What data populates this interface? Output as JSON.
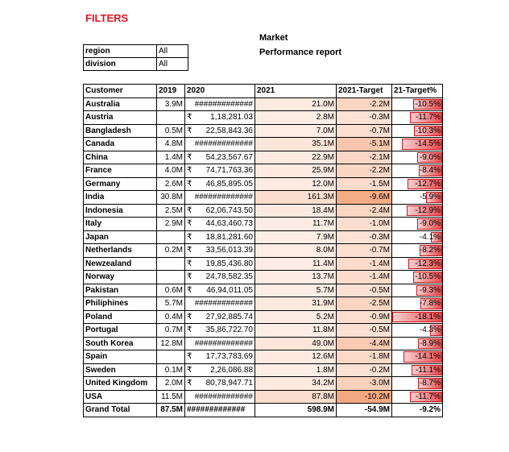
{
  "filters_title": "FILTERS",
  "report_title": [
    "Market",
    "Performance report"
  ],
  "filters": [
    {
      "label": "region",
      "value": "All"
    },
    {
      "label": "division",
      "value": "All"
    }
  ],
  "columns": [
    "Customer",
    "2019",
    "2020",
    "2021",
    "2021-Target",
    "21-Target%"
  ],
  "rows": [
    {
      "customer": "Australia",
      "y2019": "3.9M",
      "cur": "",
      "y2020": "#############",
      "y2021": "21.0M",
      "target": "-2.2M",
      "pct": "-10.5%",
      "pv": 10.5,
      "tv": 2.2
    },
    {
      "customer": "Austria",
      "y2019": "",
      "cur": "₹",
      "y2020": "1,18,281.03",
      "y2021": "2.8M",
      "target": "-0.3M",
      "pct": "-11.7%",
      "pv": 11.7,
      "tv": 0.3
    },
    {
      "customer": "Bangladesh",
      "y2019": "0.5M",
      "cur": "₹",
      "y2020": "22,58,843.36",
      "y2021": "7.0M",
      "target": "-0.7M",
      "pct": "-10.3%",
      "pv": 10.3,
      "tv": 0.7
    },
    {
      "customer": "Canada",
      "y2019": "4.8M",
      "cur": "",
      "y2020": "#############",
      "y2021": "35.1M",
      "target": "-5.1M",
      "pct": "-14.5%",
      "pv": 14.5,
      "tv": 5.1
    },
    {
      "customer": "China",
      "y2019": "1.4M",
      "cur": "₹",
      "y2020": "54,23,567.67",
      "y2021": "22.9M",
      "target": "-2.1M",
      "pct": "-9.0%",
      "pv": 9.0,
      "tv": 2.1
    },
    {
      "customer": "France",
      "y2019": "4.0M",
      "cur": "₹",
      "y2020": "74,71,763.36",
      "y2021": "25.9M",
      "target": "-2.2M",
      "pct": "-8.4%",
      "pv": 8.4,
      "tv": 2.2
    },
    {
      "customer": "Germany",
      "y2019": "2.6M",
      "cur": "₹",
      "y2020": "46,85,895.05",
      "y2021": "12.0M",
      "target": "-1.5M",
      "pct": "-12.7%",
      "pv": 12.7,
      "tv": 1.5
    },
    {
      "customer": "India",
      "y2019": "30.8M",
      "cur": "",
      "y2020": "#############",
      "y2021": "161.3M",
      "target": "-9.6M",
      "pct": "-5.9%",
      "pv": 5.9,
      "tv": 9.6
    },
    {
      "customer": "Indonesia",
      "y2019": "2.5M",
      "cur": "₹",
      "y2020": "62,06,743.50",
      "y2021": "18.4M",
      "target": "-2.4M",
      "pct": "-12.9%",
      "pv": 12.9,
      "tv": 2.4
    },
    {
      "customer": "Italy",
      "y2019": "2.9M",
      "cur": "₹",
      "y2020": "44,63,460.73",
      "y2021": "11.7M",
      "target": "-1.0M",
      "pct": "-9.0%",
      "pv": 9.0,
      "tv": 1.0
    },
    {
      "customer": "Japan",
      "y2019": "",
      "cur": "₹",
      "y2020": "18,81,281.60",
      "y2021": "7.9M",
      "target": "-0.3M",
      "pct": "-4.1%",
      "pv": 4.1,
      "tv": 0.3
    },
    {
      "customer": "Netherlands",
      "y2019": "0.2M",
      "cur": "₹",
      "y2020": "33,56,013.39",
      "y2021": "8.0M",
      "target": "-0.7M",
      "pct": "-8.2%",
      "pv": 8.2,
      "tv": 0.7
    },
    {
      "customer": "Newzealand",
      "y2019": "",
      "cur": "₹",
      "y2020": "19,85,436.80",
      "y2021": "11.4M",
      "target": "-1.4M",
      "pct": "-12.3%",
      "pv": 12.3,
      "tv": 1.4
    },
    {
      "customer": "Norway",
      "y2019": "",
      "cur": "₹",
      "y2020": "24,78,582.35",
      "y2021": "13.7M",
      "target": "-1.4M",
      "pct": "-10.5%",
      "pv": 10.5,
      "tv": 1.4
    },
    {
      "customer": "Pakistan",
      "y2019": "0.6M",
      "cur": "₹",
      "y2020": "46,94,011.05",
      "y2021": "5.7M",
      "target": "-0.5M",
      "pct": "-9.3%",
      "pv": 9.3,
      "tv": 0.5
    },
    {
      "customer": "Philiphines",
      "y2019": "5.7M",
      "cur": "",
      "y2020": "#############",
      "y2021": "31.9M",
      "target": "-2.5M",
      "pct": "-7.8%",
      "pv": 7.8,
      "tv": 2.5
    },
    {
      "customer": "Poland",
      "y2019": "0.4M",
      "cur": "₹",
      "y2020": "27,92,885.74",
      "y2021": "5.2M",
      "target": "-0.9M",
      "pct": "-18.1%",
      "pv": 18.1,
      "tv": 0.9
    },
    {
      "customer": "Portugal",
      "y2019": "0.7M",
      "cur": "₹",
      "y2020": "35,86,722.70",
      "y2021": "11.8M",
      "target": "-0.5M",
      "pct": "-4.3%",
      "pv": 4.3,
      "tv": 0.5
    },
    {
      "customer": "South Korea",
      "y2019": "12.8M",
      "cur": "",
      "y2020": "#############",
      "y2021": "49.0M",
      "target": "-4.4M",
      "pct": "-8.9%",
      "pv": 8.9,
      "tv": 4.4
    },
    {
      "customer": "Spain",
      "y2019": "",
      "cur": "₹",
      "y2020": "17,73,783.69",
      "y2021": "12.6M",
      "target": "-1.8M",
      "pct": "-14.1%",
      "pv": 14.1,
      "tv": 1.8
    },
    {
      "customer": "Sweden",
      "y2019": "0.1M",
      "cur": "₹",
      "y2020": "2,26,086.88",
      "y2021": "1.8M",
      "target": "-0.2M",
      "pct": "-11.1%",
      "pv": 11.1,
      "tv": 0.2
    },
    {
      "customer": "United Kingdom",
      "y2019": "2.0M",
      "cur": "₹",
      "y2020": "80,78,947.71",
      "y2021": "34.2M",
      "target": "-3.0M",
      "pct": "-8.7%",
      "pv": 8.7,
      "tv": 3.0
    },
    {
      "customer": "USA",
      "y2019": "11.5M",
      "cur": "",
      "y2020": "#############",
      "y2021": "87.8M",
      "target": "-10.2M",
      "pct": "-11.7%",
      "pv": 11.7,
      "tv": 10.2
    }
  ],
  "total": {
    "customer": "Grand Total",
    "y2019": "87.5M",
    "y2020": "#############",
    "y2021": "598.9M",
    "target": "-54.9M",
    "pct": "-9.2%"
  },
  "colors": {
    "title_red": "#e0181e",
    "bar_red": "#e8494c",
    "heat_max": "#f4a882",
    "heat_min": "#fdeee6"
  }
}
